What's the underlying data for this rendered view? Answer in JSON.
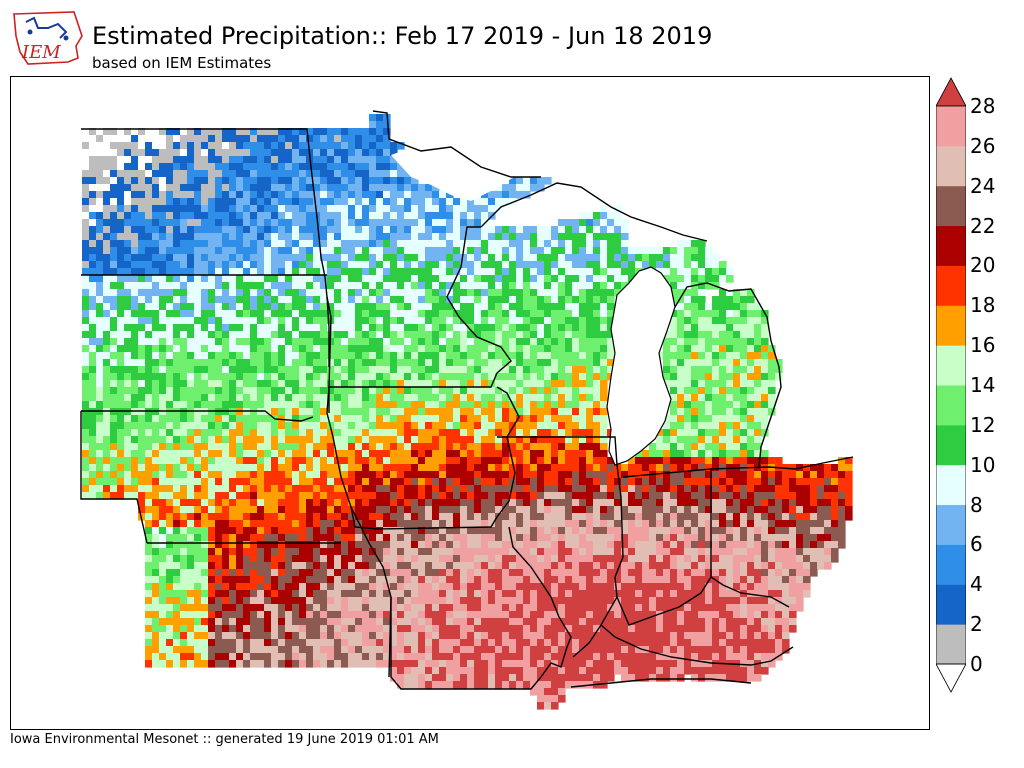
{
  "title": "Estimated Precipitation:: Feb 17 2019 - Jun 18 2019",
  "subtitle": "based on IEM Estimates",
  "footer": "Iowa Environmental Mesonet :: generated 19 June 2019 01:01 AM",
  "logo": {
    "text": "IEM",
    "icon": "iowa-state-outline-logo"
  },
  "colorbar": {
    "unit": "",
    "ticks": [
      "0",
      "2",
      "4",
      "6",
      "8",
      "10",
      "12",
      "14",
      "16",
      "18",
      "20",
      "22",
      "24",
      "26",
      "28"
    ],
    "colors": [
      "#bdbdbd",
      "#1565c8",
      "#2f8fe8",
      "#72b4f2",
      "#e6ffff",
      "#2ecc40",
      "#6ef06e",
      "#c8ffc8",
      "#ffa000",
      "#ff3300",
      "#aa0000",
      "#8b5a50",
      "#e0beb4",
      "#f0a0a0"
    ],
    "over_color": "#d04040",
    "under_color": "#ffffff"
  }
}
